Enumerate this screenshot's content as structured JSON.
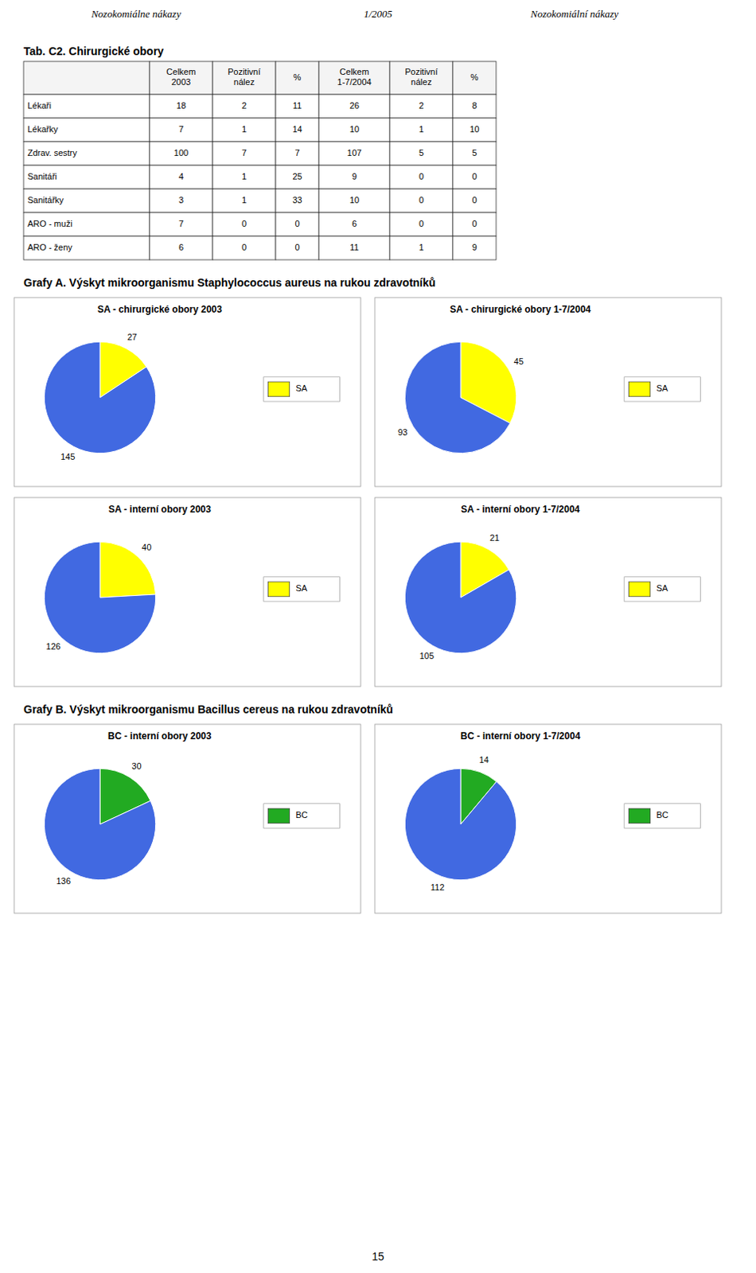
{
  "page_header": [
    "Nozokomiálne nákazy",
    "1/2005",
    "Nozokomiální nákazy"
  ],
  "table": {
    "title": "Tab. C2.  Chirurgické obory",
    "headers": [
      null,
      "Celkem\n2003",
      "Pozitivní\nnález",
      "%",
      "Celkem\n1-7/2004",
      "Pozitivní\nnález",
      "%"
    ],
    "rows": [
      [
        "Lékaři",
        "18",
        "2",
        "11",
        "26",
        "2",
        "8"
      ],
      [
        "Lékařky",
        "7",
        "1",
        "14",
        "10",
        "1",
        "10"
      ],
      [
        "Zdrav. sestry",
        "100",
        "7",
        "7",
        "107",
        "5",
        "5"
      ],
      [
        "Sanitáři",
        "4",
        "1",
        "25",
        "9",
        "0",
        "0"
      ],
      [
        "Sanitářky",
        "3",
        "1",
        "33",
        "10",
        "0",
        "0"
      ],
      [
        "ARO - muži",
        "7",
        "0",
        "0",
        "6",
        "0",
        "0"
      ],
      [
        "ARO - ženy",
        "6",
        "0",
        "0",
        "11",
        "1",
        "9"
      ]
    ]
  },
  "section_titles": [
    "Grafy A. Výskyt mikroorganismu Staphylococcus aureus na rukou zdravotníků",
    "Grafy B. Výskyt mikroorganismu Bacillus cereus na rukou zdravotníků"
  ],
  "chart_data": [
    {
      "type": "pie",
      "title": "SA - chirurgické obory 2003",
      "categories": [
        "SA",
        null
      ],
      "values": [
        27,
        145
      ],
      "colors": [
        "#FFFF00",
        "#4169E1"
      ],
      "data_labels": true,
      "legend": "right"
    },
    {
      "type": "pie",
      "title": "SA - chirurgické obory 1-7/2004",
      "categories": [
        "SA",
        null
      ],
      "values": [
        45,
        93
      ],
      "colors": [
        "#FFFF00",
        "#4169E1"
      ],
      "data_labels": true,
      "legend": "right"
    },
    {
      "type": "pie",
      "title": "SA - interní obory 2003",
      "categories": [
        "SA",
        null
      ],
      "values": [
        40,
        126
      ],
      "colors": [
        "#FFFF00",
        "#4169E1"
      ],
      "data_labels": true,
      "legend": "right"
    },
    {
      "type": "pie",
      "title": "SA - interní obory 1-7/2004",
      "categories": [
        "SA",
        null
      ],
      "values": [
        21,
        105
      ],
      "colors": [
        "#FFFF00",
        "#4169E1"
      ],
      "data_labels": true,
      "legend": "right"
    },
    {
      "type": "pie",
      "title": "BC - interní obory 2003",
      "categories": [
        "BC",
        null
      ],
      "values": [
        30,
        136
      ],
      "colors": [
        "#22AA22",
        "#4169E1"
      ],
      "data_labels": true,
      "legend": "right"
    },
    {
      "type": "pie",
      "title": "BC - interní obory 1-7/2004",
      "categories": [
        "BC",
        null
      ],
      "values": [
        14,
        112
      ],
      "colors": [
        "#22AA22",
        "#4169E1"
      ],
      "data_labels": true,
      "legend": "right"
    }
  ],
  "page_number": "15"
}
